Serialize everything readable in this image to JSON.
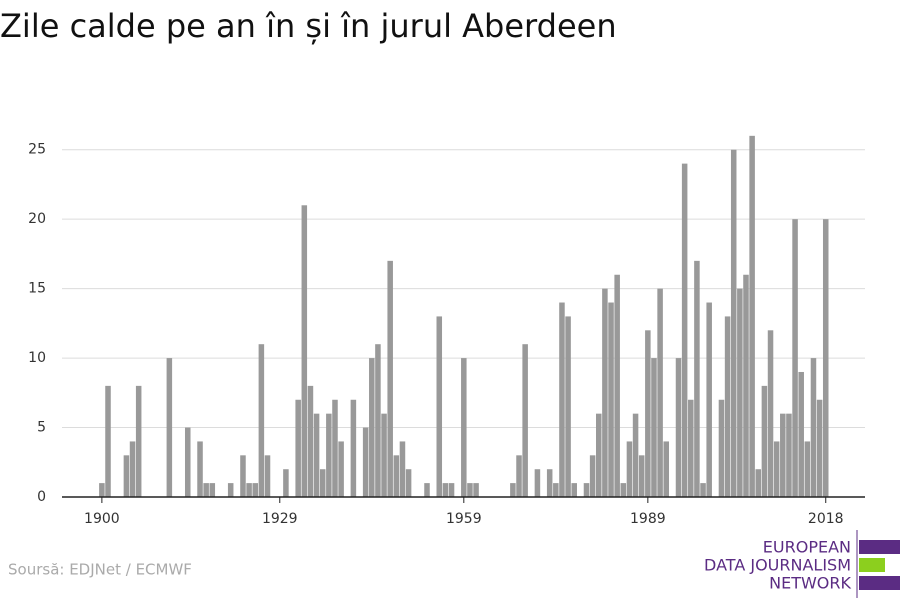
{
  "chart_data": {
    "type": "bar",
    "title": "Zile calde pe an în și în jurul Aberdeen",
    "x": [
      1900,
      1901,
      1904,
      1905,
      1906,
      1911,
      1914,
      1916,
      1917,
      1918,
      1921,
      1923,
      1924,
      1925,
      1926,
      1927,
      1930,
      1932,
      1933,
      1934,
      1935,
      1936,
      1937,
      1938,
      1939,
      1941,
      1943,
      1944,
      1945,
      1946,
      1947,
      1948,
      1949,
      1950,
      1953,
      1955,
      1956,
      1957,
      1959,
      1960,
      1961,
      1967,
      1968,
      1969,
      1971,
      1973,
      1974,
      1975,
      1976,
      1977,
      1979,
      1980,
      1981,
      1982,
      1983,
      1984,
      1985,
      1986,
      1987,
      1988,
      1989,
      1990,
      1991,
      1992,
      1994,
      1995,
      1996,
      1997,
      1998,
      1999,
      2001,
      2002,
      2003,
      2004,
      2005,
      2006,
      2007,
      2008,
      2009,
      2010,
      2011,
      2012,
      2013,
      2014,
      2015,
      2016,
      2017,
      2018
    ],
    "values": [
      1,
      8,
      3,
      4,
      8,
      10,
      5,
      4,
      1,
      1,
      1,
      3,
      1,
      1,
      11,
      3,
      2,
      7,
      21,
      8,
      6,
      2,
      6,
      7,
      4,
      7,
      5,
      10,
      11,
      6,
      17,
      3,
      4,
      2,
      1,
      13,
      1,
      1,
      10,
      1,
      1,
      1,
      3,
      11,
      2,
      2,
      1,
      14,
      13,
      1,
      1,
      3,
      6,
      15,
      14,
      16,
      1,
      4,
      6,
      3,
      12,
      10,
      15,
      4,
      10,
      24,
      7,
      17,
      1,
      14,
      7,
      13,
      25,
      15,
      16,
      26,
      2,
      8,
      12,
      4,
      6,
      6,
      20,
      9,
      4,
      10,
      7,
      20
    ],
    "color": "#999999",
    "xlim": [
      1893.5,
      2024.4
    ],
    "xticks": [
      1900,
      1929,
      1959,
      1989,
      2018
    ],
    "ylim": [
      0,
      27.5
    ],
    "yticks": [
      0,
      5,
      10,
      15,
      20,
      25
    ],
    "grid": true,
    "source": "Soursă: EDJNet / ECMWF"
  },
  "logo": {
    "lines": [
      "EUROPEAN",
      "DATA JOURNALISM",
      "NETWORK"
    ]
  }
}
